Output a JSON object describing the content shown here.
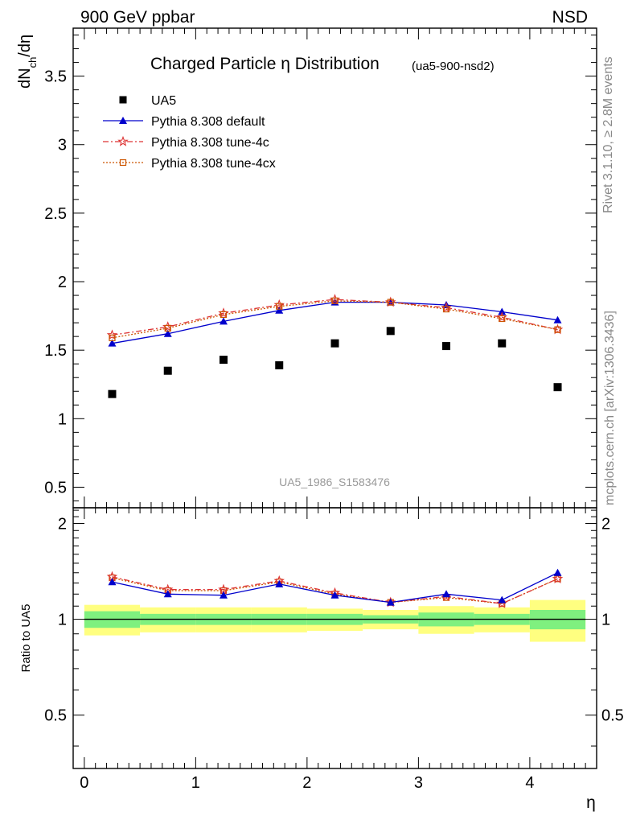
{
  "header": {
    "energy_label": "900 GeV ppbar",
    "process_label": "NSD"
  },
  "side_text": {
    "rivet": "Rivet 3.1.10, ≥ 2.8M events",
    "mcplots": "mcplots.cern.ch [arXiv:1306.3436]"
  },
  "chart_data": [
    {
      "type": "scatter",
      "title": "Charged Particle η Distribution",
      "subtitle": "(ua5-900-nsd2)",
      "watermark": "UA5_1986_S1583476",
      "ylabel": "dN_ch/dη",
      "ylabel_main": "dN",
      "ylabel_sub": "ch",
      "ylabel_tail": "/dη",
      "xlim": [
        -0.1,
        4.6
      ],
      "ylim": [
        0.35,
        3.85
      ],
      "yticks": [
        0.5,
        1,
        1.5,
        2,
        2.5,
        3,
        3.5
      ],
      "ytick_labels": [
        "0.5",
        "1",
        "1.5",
        "2",
        "2.5",
        "3",
        "3.5"
      ],
      "x": [
        0.25,
        0.75,
        1.25,
        1.75,
        2.25,
        2.75,
        3.25,
        3.75,
        4.25
      ],
      "series": [
        {
          "name": "UA5",
          "color": "#000000",
          "marker": "square",
          "line": "none",
          "values": [
            1.18,
            1.35,
            1.43,
            1.39,
            1.55,
            1.64,
            1.53,
            1.55,
            1.23
          ]
        },
        {
          "name": "Pythia 8.308 default",
          "color": "#0000cc",
          "marker": "triangle",
          "line": "solid",
          "values": [
            1.55,
            1.62,
            1.71,
            1.79,
            1.85,
            1.85,
            1.83,
            1.78,
            1.72
          ]
        },
        {
          "name": "Pythia 8.308 tune-4c",
          "color": "#dd3333",
          "marker": "star",
          "line": "dashdot",
          "values": [
            1.61,
            1.67,
            1.77,
            1.83,
            1.87,
            1.85,
            1.81,
            1.74,
            1.65
          ]
        },
        {
          "name": "Pythia 8.308 tune-4cx",
          "color": "#cc5500",
          "marker": "open-square",
          "line": "dotted",
          "values": [
            1.59,
            1.66,
            1.76,
            1.82,
            1.86,
            1.85,
            1.8,
            1.73,
            1.65
          ]
        }
      ],
      "legend_position": "top-left"
    },
    {
      "type": "line",
      "ylabel": "Ratio to UA5",
      "xlabel": "η",
      "xlim": [
        -0.1,
        4.6
      ],
      "ylim": [
        0.34,
        2.24
      ],
      "xticks": [
        0,
        1,
        2,
        3,
        4
      ],
      "xtick_labels": [
        "0",
        "1",
        "2",
        "3",
        "4"
      ],
      "yticks": [
        0.5,
        1,
        2
      ],
      "ytick_labels": [
        "0.5",
        "1",
        "2"
      ],
      "x": [
        0.25,
        0.75,
        1.25,
        1.75,
        2.25,
        2.75,
        3.25,
        3.75,
        4.25
      ],
      "bin_edges": [
        0,
        0.5,
        1,
        1.5,
        2,
        2.5,
        3,
        3.5,
        4,
        4.5
      ],
      "band_inner": [
        0.06,
        0.04,
        0.04,
        0.04,
        0.04,
        0.03,
        0.05,
        0.04,
        0.07
      ],
      "band_outer": [
        0.11,
        0.09,
        0.09,
        0.09,
        0.08,
        0.07,
        0.1,
        0.09,
        0.15
      ],
      "band_inner_color": "#7ff07f",
      "band_outer_color": "#ffff80",
      "series": [
        {
          "name": "Pythia 8.308 default",
          "color": "#0000cc",
          "marker": "triangle",
          "line": "solid",
          "values": [
            1.31,
            1.2,
            1.19,
            1.29,
            1.19,
            1.13,
            1.2,
            1.15,
            1.4
          ]
        },
        {
          "name": "Pythia 8.308 tune-4c",
          "color": "#dd3333",
          "marker": "star",
          "line": "dashdot",
          "values": [
            1.36,
            1.24,
            1.24,
            1.32,
            1.21,
            1.13,
            1.18,
            1.12,
            1.34
          ]
        },
        {
          "name": "Pythia 8.308 tune-4cx",
          "color": "#cc5500",
          "marker": "open-square",
          "line": "dotted",
          "values": [
            1.35,
            1.23,
            1.23,
            1.31,
            1.2,
            1.13,
            1.17,
            1.12,
            1.34
          ]
        }
      ]
    }
  ]
}
